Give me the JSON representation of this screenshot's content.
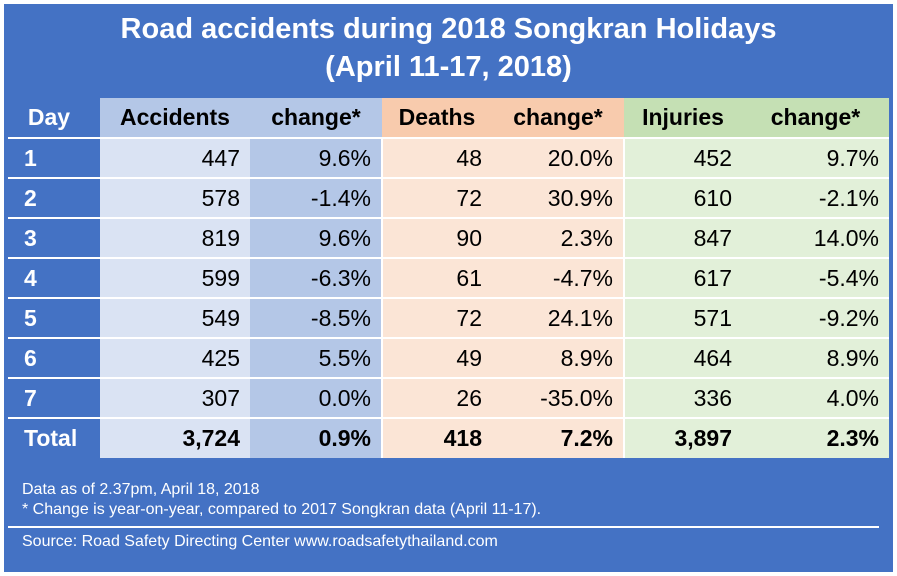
{
  "chart_data": {
    "type": "table",
    "title_line1": "Road accidents during 2018 Songkran Holidays",
    "title_line2": "(April 11-17, 2018)",
    "columns": [
      "Day",
      "Accidents",
      "change*",
      "Deaths",
      "change*",
      "Injuries",
      "change*"
    ],
    "rows": [
      [
        "1",
        "447",
        "9.6%",
        "48",
        "20.0%",
        "452",
        "9.7%"
      ],
      [
        "2",
        "578",
        "-1.4%",
        "72",
        "30.9%",
        "610",
        "-2.1%"
      ],
      [
        "3",
        "819",
        "9.6%",
        "90",
        "2.3%",
        "847",
        "14.0%"
      ],
      [
        "4",
        "599",
        "-6.3%",
        "61",
        "-4.7%",
        "617",
        "-5.4%"
      ],
      [
        "5",
        "549",
        "-8.5%",
        "72",
        "24.1%",
        "571",
        "-9.2%"
      ],
      [
        "6",
        "425",
        "5.5%",
        "49",
        "8.9%",
        "464",
        "8.9%"
      ],
      [
        "7",
        "307",
        "0.0%",
        "26",
        "-35.0%",
        "336",
        "4.0%"
      ]
    ],
    "total": [
      "Total",
      "3,724",
      "0.9%",
      "418",
      "7.2%",
      "3,897",
      "2.3%"
    ]
  },
  "footer": {
    "data_as_of": "Data as of 2.37pm, April 18, 2018",
    "note": "* Change is year-on-year, compared to 2017 Songkran data (April 11-17).",
    "source": "Source: Road Safety Directing Center www.roadsafetythailand.com"
  },
  "colors": {
    "frame": "#4472c4",
    "accidents": "#dae3f3",
    "accidents_change": "#b4c7e7",
    "deaths": "#fbe5d6",
    "deaths_header": "#f8cbad",
    "injuries": "#e2f0d9",
    "injuries_header": "#c5e0b4"
  }
}
